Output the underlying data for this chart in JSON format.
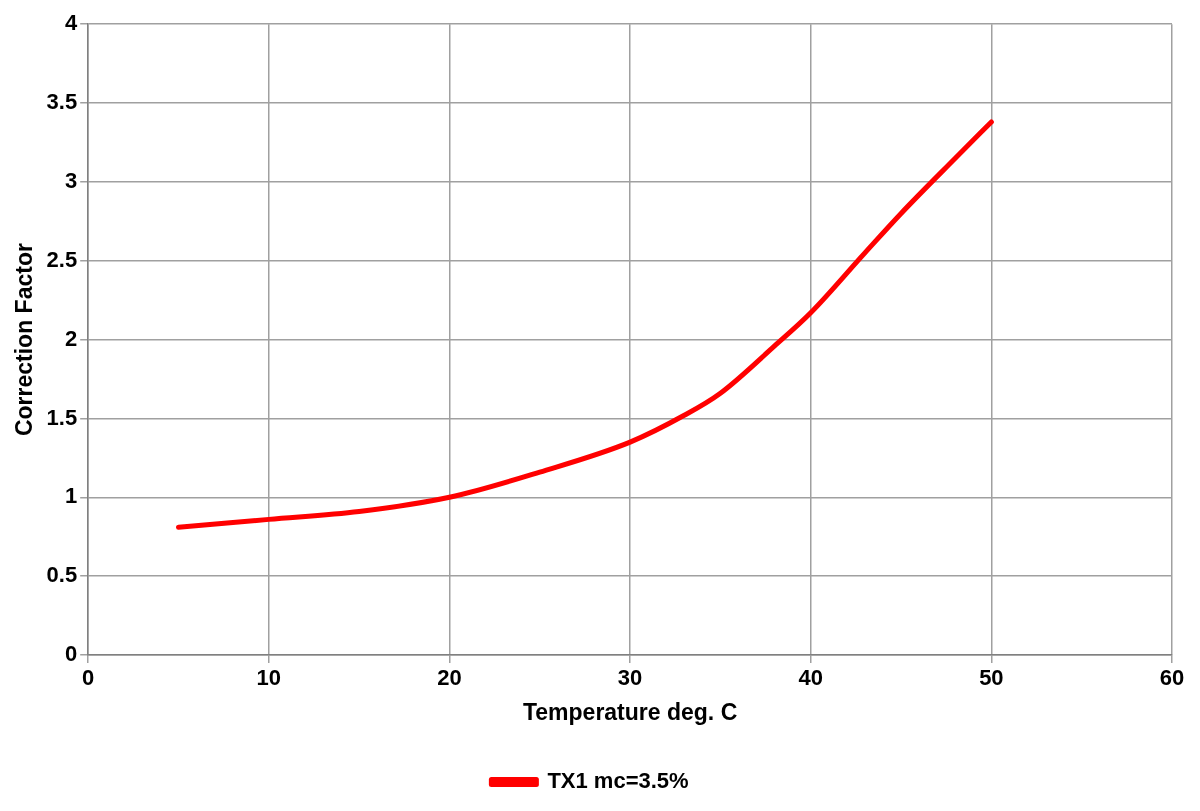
{
  "chart_data": {
    "type": "line",
    "xlabel": "Temperature deg. C",
    "ylabel": "Correction Factor",
    "xlim": [
      0,
      60
    ],
    "xticks": [
      0,
      10,
      20,
      30,
      40,
      50,
      60
    ],
    "ylim": [
      0,
      4
    ],
    "yticks": [
      0,
      0.5,
      1,
      1.5,
      2,
      2.5,
      3,
      3.5,
      4
    ],
    "grid": true,
    "legend": "bottom",
    "marker": "none",
    "line_style": "solid",
    "series": [
      {
        "name": "TX1 mc=3.5%",
        "color": "#ff0000",
        "x": [
          5,
          10,
          15,
          20,
          25,
          30,
          33,
          35,
          38,
          40,
          43,
          45,
          48,
          50
        ],
        "values": [
          0.81,
          0.86,
          0.91,
          1.0,
          1.16,
          1.35,
          1.52,
          1.66,
          1.96,
          2.17,
          2.55,
          2.8,
          3.15,
          3.38
        ]
      }
    ]
  }
}
